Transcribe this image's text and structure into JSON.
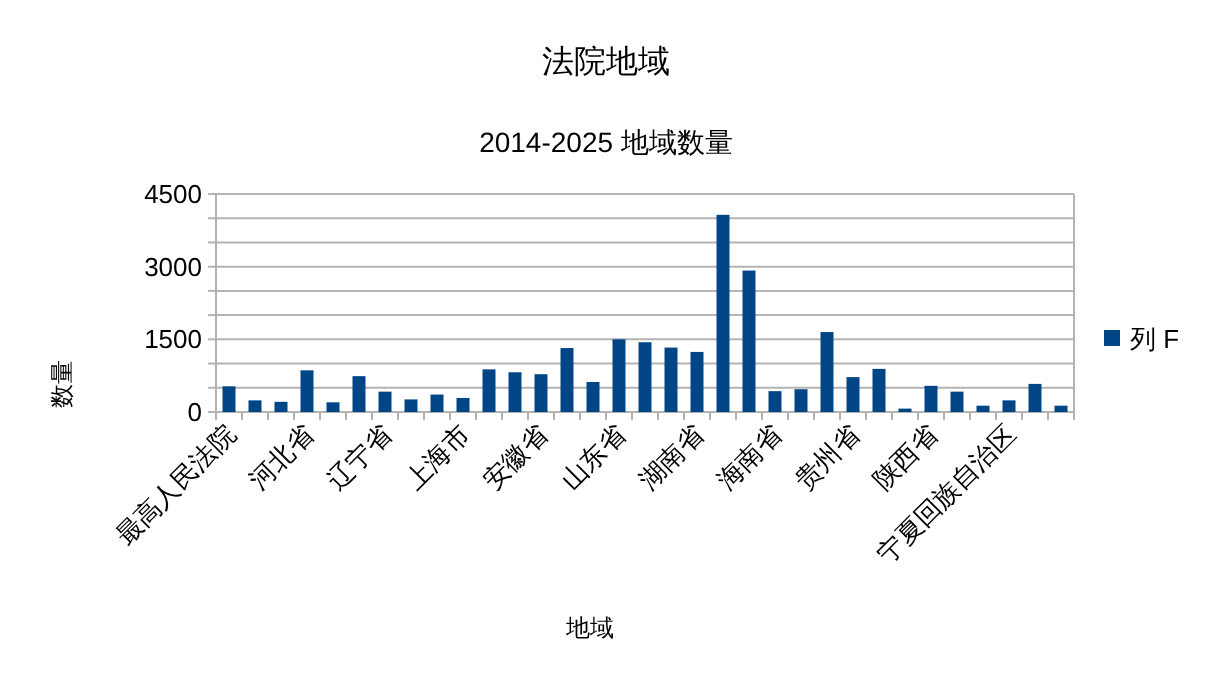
{
  "chart_data": {
    "type": "bar",
    "title": "法院地域",
    "subtitle": "2014-2025 地域数量",
    "xlabel": "地域",
    "ylabel": "数量",
    "categories": [
      "最高人民法院",
      null,
      null,
      "河北省",
      null,
      null,
      "辽宁省",
      null,
      null,
      "上海市",
      null,
      null,
      "安徽省",
      null,
      null,
      "山东省",
      null,
      null,
      "湖南省",
      null,
      null,
      "海南省",
      null,
      null,
      "贵州省",
      null,
      null,
      "陕西省",
      null,
      null,
      "宁夏回族自治区",
      null,
      null
    ],
    "series": [
      {
        "name": "列 F",
        "color": "#004586",
        "values": [
          530,
          240,
          210,
          860,
          200,
          740,
          420,
          260,
          360,
          290,
          880,
          820,
          780,
          1320,
          620,
          1500,
          1440,
          1330,
          1240,
          4070,
          2920,
          430,
          470,
          1650,
          720,
          890,
          70,
          540,
          420,
          130,
          240,
          580,
          130
        ]
      }
    ],
    "ylim": [
      0,
      4500
    ],
    "yticks": [
      0,
      {
        "value": 500,
        "label": null
      },
      {
        "value": 1000,
        "label": null
      },
      1500,
      {
        "value": 2000,
        "label": null
      },
      {
        "value": 2500,
        "label": null
      },
      3000,
      {
        "value": 3500,
        "label": null
      },
      {
        "value": 4000,
        "label": null
      },
      4500
    ],
    "grid": "y",
    "legend": "right"
  }
}
